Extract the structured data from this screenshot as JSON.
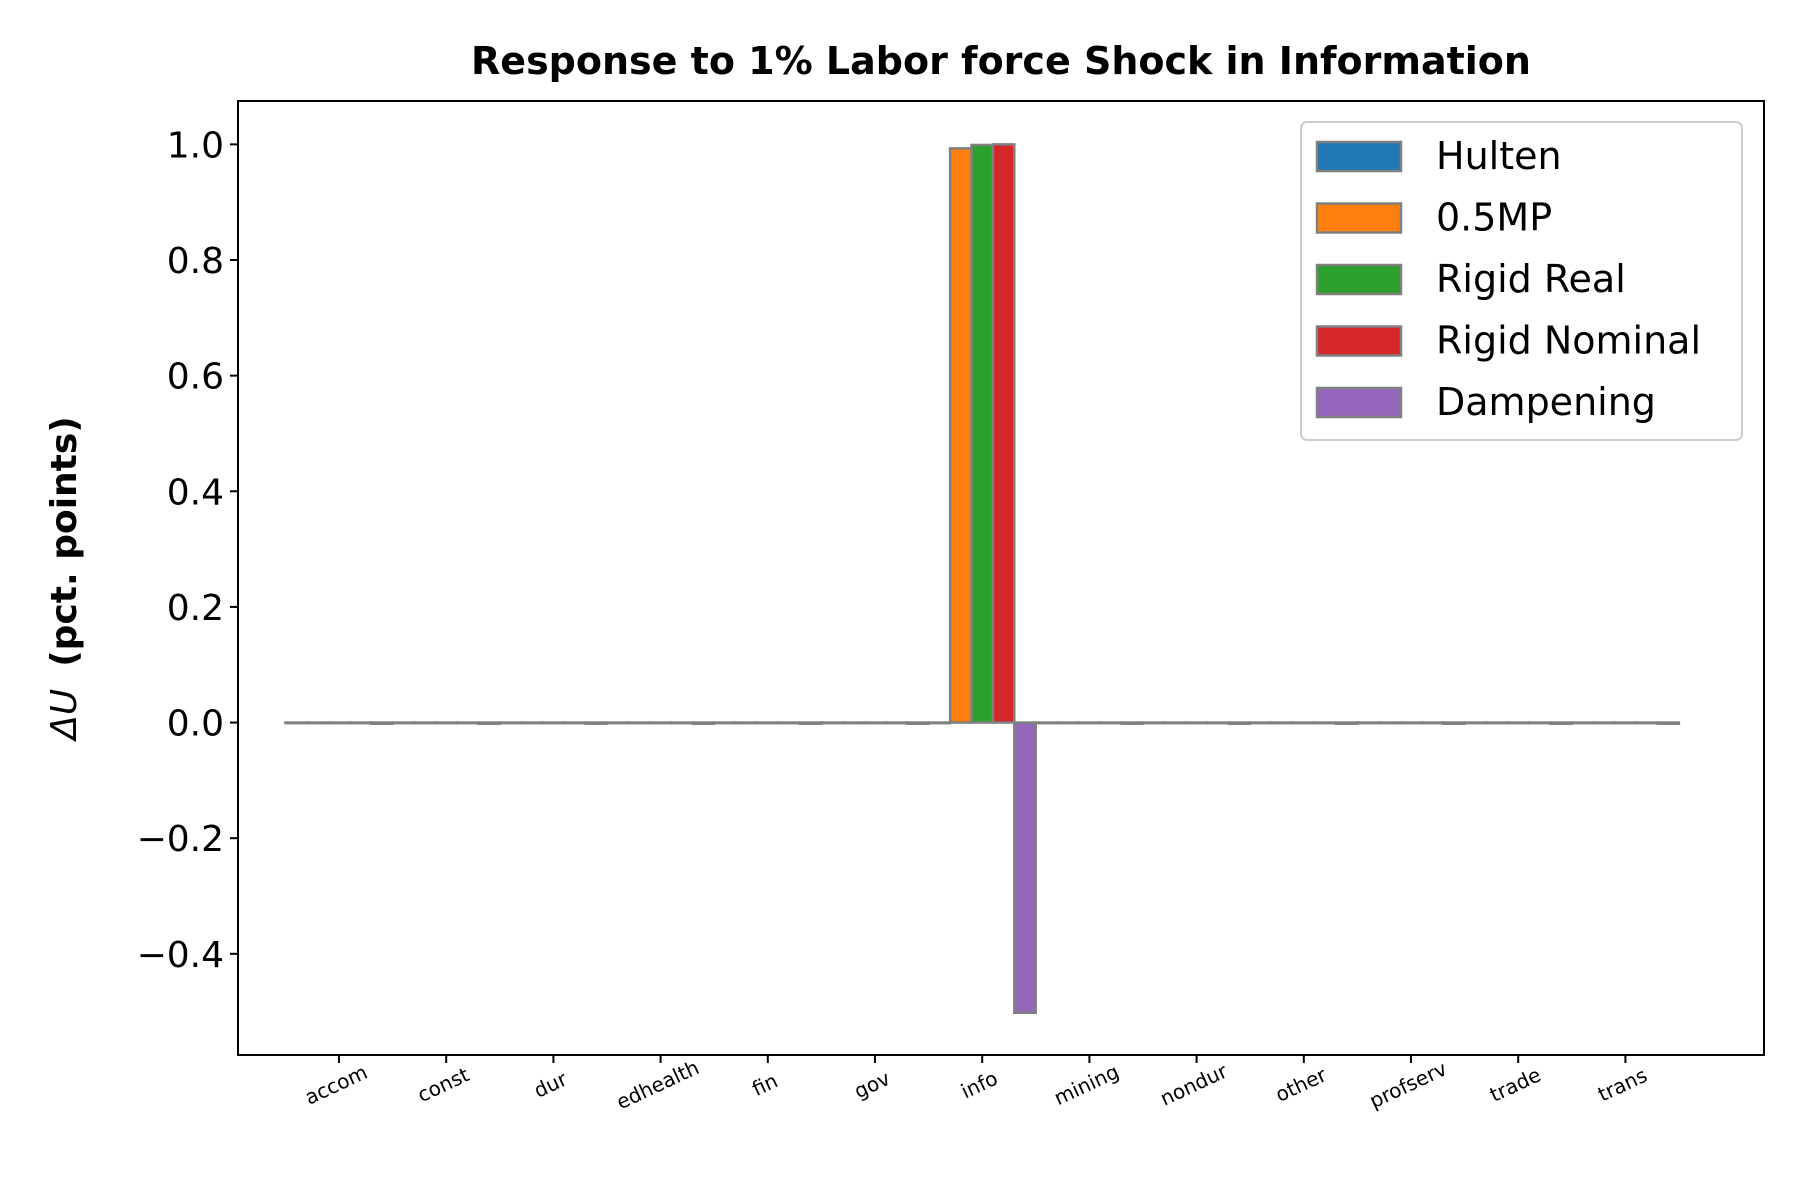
{
  "chart_data": {
    "type": "bar",
    "title": "Response to 1% Labor force Shock in Information",
    "ylabel_symbol": "ΔU",
    "ylabel_unit": "(pct. points)",
    "xlabel": "",
    "categories": [
      "accom",
      "const",
      "dur",
      "edhealth",
      "fin",
      "gov",
      "info",
      "mining",
      "nondur",
      "other",
      "profserv",
      "trade",
      "trans"
    ],
    "ylim": [
      -0.575,
      1.075
    ],
    "yticks": [
      -0.4,
      -0.2,
      0.0,
      0.2,
      0.4,
      0.6,
      0.8,
      1.0
    ],
    "ytick_labels": [
      "−0.4",
      "−0.2",
      "0.0",
      "0.2",
      "0.4",
      "0.6",
      "0.8",
      "1.0"
    ],
    "grid": false,
    "legend_position": "top-right",
    "bar_edge_color": "#808080",
    "series": [
      {
        "name": "Hulten",
        "color": "#1f77b4",
        "values": [
          0,
          0,
          0,
          0,
          0,
          0,
          0,
          0,
          0,
          0,
          0,
          0,
          0
        ]
      },
      {
        "name": "0.5MP",
        "color": "#ff7f0e",
        "values": [
          0,
          0,
          0,
          0,
          0,
          0,
          0.993,
          0,
          0,
          0,
          0,
          0,
          0
        ]
      },
      {
        "name": "Rigid Real",
        "color": "#2ca02c",
        "values": [
          0,
          0,
          0,
          0,
          0,
          0,
          0.999,
          0,
          0,
          0,
          0,
          0,
          0
        ]
      },
      {
        "name": "Rigid Nominal",
        "color": "#d62728",
        "values": [
          0,
          0,
          0,
          0,
          0,
          0,
          1.0,
          0,
          0,
          0,
          0,
          0,
          0
        ]
      },
      {
        "name": "Dampening",
        "color": "#9467bd",
        "values": [
          -0.002,
          -0.002,
          -0.002,
          -0.002,
          -0.002,
          -0.002,
          -0.502,
          -0.002,
          -0.002,
          -0.002,
          -0.002,
          -0.002,
          -0.002
        ]
      }
    ]
  }
}
